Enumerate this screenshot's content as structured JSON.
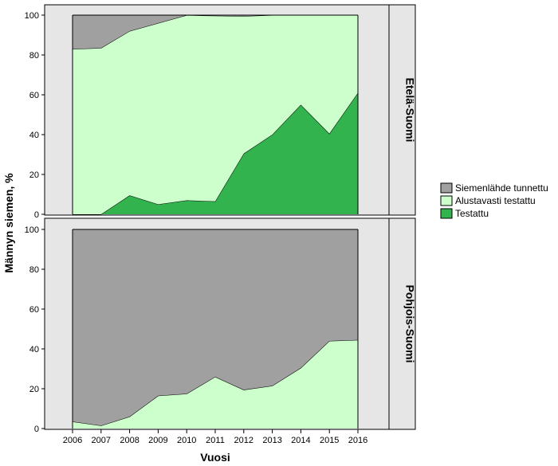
{
  "chart_data": {
    "type": "area",
    "stacked": true,
    "x": [
      2006,
      2007,
      2008,
      2009,
      2010,
      2011,
      2012,
      2013,
      2014,
      2015,
      2016
    ],
    "xlabel": "Vuosi",
    "ylabel": "Männyn siemen, %",
    "ylim": [
      0,
      100
    ],
    "yticks": [
      0,
      20,
      40,
      60,
      80,
      100
    ],
    "legend": {
      "position": "right",
      "items": [
        {
          "label": "Siemenlähde tunnettu",
          "color": "#a0a0a0"
        },
        {
          "label": "Alustavasti testattu",
          "color": "#ccffcc"
        },
        {
          "label": "Testattu",
          "color": "#33b34d"
        }
      ]
    },
    "panels": [
      {
        "name": "Etelä-Suomi",
        "series": [
          {
            "name": "Testattu",
            "values": [
              0,
              0,
              9.5,
              5,
              7,
              6.5,
              30.5,
              40,
              55,
              40.5,
              61
            ]
          },
          {
            "name": "Alustavasti testattu",
            "values": [
              83,
              83.5,
              82.5,
              91,
              93,
              93.2,
              69,
              60,
              45,
              59.5,
              39
            ]
          },
          {
            "name": "Siemenlähde tunnettu",
            "values": [
              17,
              16.5,
              8,
              4,
              0,
              0.3,
              0.5,
              0,
              0,
              0,
              0
            ]
          }
        ]
      },
      {
        "name": "Pohjois-Suomi",
        "series": [
          {
            "name": "Testattu",
            "values": [
              0,
              0,
              0,
              0,
              0,
              0,
              0,
              0,
              0,
              0,
              0
            ]
          },
          {
            "name": "Alustavasti testattu",
            "values": [
              3.5,
              1.5,
              6,
              16.5,
              17.5,
              26,
              19.5,
              21.5,
              30.5,
              44,
              44.5
            ]
          },
          {
            "name": "Siemenlähde tunnettu",
            "values": [
              96.5,
              98.5,
              94,
              83.5,
              82.5,
              74,
              80.5,
              78.5,
              69.5,
              56,
              55.5
            ]
          }
        ]
      }
    ]
  }
}
